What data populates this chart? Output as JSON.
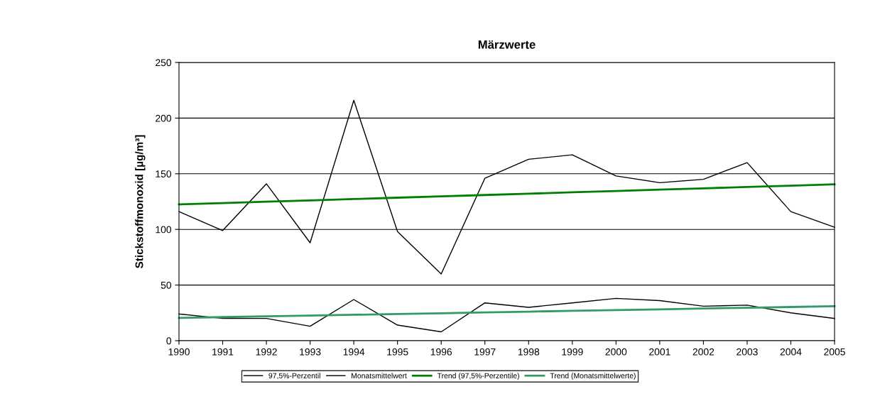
{
  "chart_data": {
    "type": "line",
    "title": "Märzwerte",
    "ylabel": "Stickstoffmonoxid [µg/m³]",
    "x": [
      1990,
      1991,
      1992,
      1993,
      1994,
      1995,
      1996,
      1997,
      1998,
      1999,
      2000,
      2001,
      2002,
      2003,
      2004,
      2005
    ],
    "series": [
      {
        "name": "97,5%-Perzentil",
        "color": "#000000",
        "values": [
          116,
          99,
          141,
          88,
          216,
          98,
          60,
          146,
          163,
          167,
          148,
          142,
          145,
          160,
          116,
          102
        ]
      },
      {
        "name": "Monatsmittelwert",
        "color": "#000000",
        "values": [
          24,
          20,
          20,
          13,
          37,
          14,
          8,
          34,
          30,
          34,
          38,
          36,
          31,
          32,
          25,
          20
        ]
      },
      {
        "name": "Trend (97,5%-Perzentile)",
        "color": "#008000",
        "values": [
          122.5,
          123.7,
          124.9,
          126.1,
          127.3,
          128.5,
          129.7,
          130.9,
          132.1,
          133.3,
          134.5,
          135.7,
          136.9,
          138.1,
          139.3,
          140.5
        ]
      },
      {
        "name": "Trend (Monatsmittelwerte)",
        "color": "#339966",
        "values": [
          20.5,
          21.2,
          21.9,
          22.6,
          23.3,
          24,
          24.7,
          25.4,
          26.1,
          26.8,
          27.5,
          28.2,
          28.9,
          29.6,
          30.3,
          31
        ]
      }
    ],
    "xlim": [
      1990,
      2005
    ],
    "xticks": [
      1990,
      1991,
      1992,
      1993,
      1994,
      1995,
      1996,
      1997,
      1998,
      1999,
      2000,
      2001,
      2002,
      2003,
      2004,
      2005
    ],
    "ylim": [
      0,
      250
    ],
    "yticks": [
      0,
      50,
      100,
      150,
      200,
      250
    ],
    "grid": "y",
    "legend": "bottom",
    "marker": "none",
    "line_style": "solid"
  }
}
